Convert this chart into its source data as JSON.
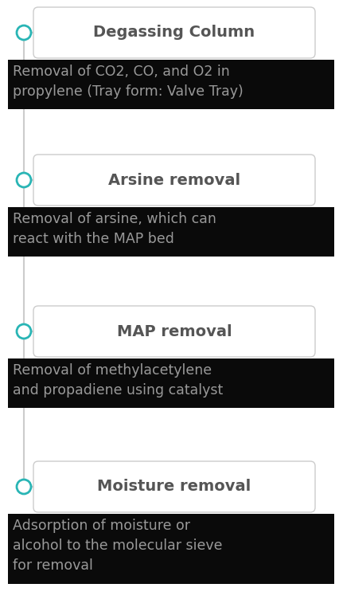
{
  "items": [
    {
      "title": "Degassing Column",
      "description": "Removal of CO2, CO, and O2 in\npropylene (Tray form: Valve Tray)",
      "num_desc_lines": 2
    },
    {
      "title": "Arsine removal",
      "description": "Removal of arsine, which can\nreact with the MAP bed",
      "num_desc_lines": 2
    },
    {
      "title": "MAP removal",
      "description": "Removal of methylacetylene\nand propadiene using catalyst",
      "num_desc_lines": 2
    },
    {
      "title": "Moisture removal",
      "description": "Adsorption of moisture or\nalcohol to the molecular sieve\nfor removal",
      "num_desc_lines": 3
    }
  ],
  "background_color": "#ffffff",
  "box_fill": "#ffffff",
  "box_edge": "#cccccc",
  "title_color": "#555555",
  "desc_color": "#999999",
  "desc_bg_color": "#0a0a0a",
  "circle_color": "#29b5b5",
  "circle_fill": "#ffffff",
  "line_color": "#cccccc",
  "title_fontsize": 14,
  "desc_fontsize": 12.5,
  "fig_width": 4.26,
  "fig_height": 7.72,
  "dpi": 100
}
